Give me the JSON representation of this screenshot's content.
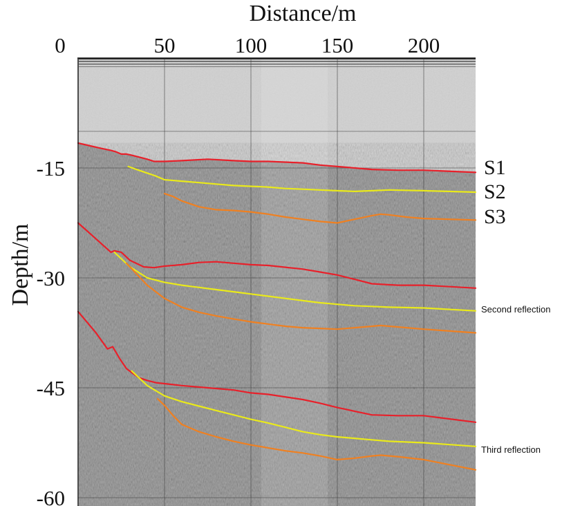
{
  "chart_data": {
    "type": "line",
    "title": "",
    "xlabel": "Distance/m",
    "ylabel": "Depth/m",
    "xlim": [
      0,
      230
    ],
    "ylim": [
      -60,
      0
    ],
    "x_ticks": [
      0,
      50,
      100,
      150,
      200
    ],
    "y_ticks": [
      -15,
      -30,
      -45,
      -60
    ],
    "grid": true,
    "series": [
      {
        "name": "S1",
        "color": "#e8202a",
        "group": "primary",
        "x": [
          0,
          13,
          19,
          22,
          25,
          28,
          30,
          35,
          40,
          44,
          50,
          60,
          75,
          90,
          100,
          110,
          130,
          140,
          150,
          160,
          170,
          185,
          200,
          230
        ],
        "y": [
          -11.6,
          -12.3,
          -12.6,
          -12.8,
          -13.1,
          -13.1,
          -13.2,
          -13.5,
          -13.8,
          -14.1,
          -14.1,
          -14.0,
          -13.8,
          -14.0,
          -14.1,
          -14.1,
          -14.3,
          -14.6,
          -14.8,
          -15.0,
          -15.2,
          -15.3,
          -15.3,
          -15.6
        ]
      },
      {
        "name": "S2",
        "color": "#eaea1a",
        "group": "primary",
        "x": [
          29,
          35,
          40,
          45,
          50,
          60,
          70,
          80,
          90,
          100,
          110,
          120,
          130,
          140,
          150,
          160,
          170,
          180,
          200,
          230
        ],
        "y": [
          -14.8,
          -15.3,
          -15.7,
          -16.1,
          -16.6,
          -16.8,
          -17.0,
          -17.2,
          -17.4,
          -17.5,
          -17.6,
          -17.8,
          -17.9,
          -18.0,
          -18.1,
          -18.2,
          -18.1,
          -18.0,
          -18.1,
          -18.3
        ]
      },
      {
        "name": "S3",
        "color": "#f08020",
        "group": "primary",
        "x": [
          50,
          55,
          60,
          70,
          80,
          90,
          100,
          110,
          120,
          130,
          140,
          150,
          160,
          170,
          175,
          180,
          190,
          200,
          230
        ],
        "y": [
          -18.5,
          -18.9,
          -19.5,
          -20.3,
          -20.7,
          -20.8,
          -21.0,
          -21.3,
          -21.7,
          -22.0,
          -22.3,
          -22.5,
          -22.0,
          -21.5,
          -21.3,
          -21.4,
          -21.7,
          -21.9,
          -22.1
        ]
      },
      {
        "name": "S1",
        "color": "#e8202a",
        "group": "Second reflection",
        "x": [
          0,
          10,
          19,
          21,
          25,
          30,
          38,
          44,
          50,
          60,
          70,
          80,
          90,
          100,
          110,
          130,
          140,
          150,
          160,
          170,
          185,
          200,
          230
        ],
        "y": [
          -22.5,
          -24.6,
          -26.5,
          -26.3,
          -26.5,
          -27.6,
          -28.5,
          -28.6,
          -28.4,
          -28.2,
          -27.9,
          -27.8,
          -28.0,
          -28.2,
          -28.3,
          -28.8,
          -29.2,
          -29.6,
          -30.2,
          -30.8,
          -31.0,
          -31.0,
          -31.4
        ]
      },
      {
        "name": "S2",
        "color": "#eaea1a",
        "group": "Second reflection",
        "x": [
          21,
          30,
          40,
          50,
          60,
          70,
          80,
          90,
          100,
          110,
          120,
          130,
          140,
          150,
          160,
          170,
          180,
          200,
          230
        ],
        "y": [
          -26.5,
          -28.5,
          -30.0,
          -30.6,
          -31.0,
          -31.3,
          -31.6,
          -31.9,
          -32.2,
          -32.5,
          -32.8,
          -33.1,
          -33.4,
          -33.6,
          -33.8,
          -33.9,
          -34.0,
          -34.1,
          -34.5
        ]
      },
      {
        "name": "S3",
        "color": "#f08020",
        "group": "Second reflection",
        "x": [
          28,
          40,
          50,
          60,
          70,
          80,
          90,
          100,
          110,
          120,
          130,
          140,
          150,
          160,
          170,
          175,
          185,
          200,
          230
        ],
        "y": [
          -28.0,
          -31.0,
          -32.8,
          -34.0,
          -34.7,
          -35.2,
          -35.6,
          -36.0,
          -36.3,
          -36.6,
          -36.8,
          -36.9,
          -37.0,
          -36.8,
          -36.6,
          -36.5,
          -36.7,
          -37.0,
          -37.5
        ]
      },
      {
        "name": "S1",
        "color": "#e8202a",
        "group": "Third reflection",
        "x": [
          0,
          10,
          17,
          20,
          24,
          28,
          35,
          40,
          45,
          60,
          75,
          90,
          100,
          110,
          130,
          140,
          150,
          160,
          170,
          185,
          200,
          230
        ],
        "y": [
          -34.6,
          -37.4,
          -39.7,
          -39.4,
          -41.0,
          -42.4,
          -43.6,
          -44.0,
          -44.3,
          -44.7,
          -45.0,
          -45.3,
          -45.7,
          -45.9,
          -46.6,
          -47.1,
          -47.7,
          -48.2,
          -48.7,
          -48.8,
          -48.8,
          -49.7
        ]
      },
      {
        "name": "S2",
        "color": "#eaea1a",
        "group": "Third reflection",
        "x": [
          31,
          40,
          50,
          60,
          70,
          80,
          90,
          100,
          110,
          120,
          130,
          140,
          150,
          160,
          170,
          180,
          200,
          230
        ],
        "y": [
          -42.7,
          -44.7,
          -46.1,
          -46.9,
          -47.5,
          -48.1,
          -48.7,
          -49.3,
          -49.8,
          -50.4,
          -51.0,
          -51.4,
          -51.7,
          -51.9,
          -52.1,
          -52.3,
          -52.5,
          -53.0
        ]
      },
      {
        "name": "S3",
        "color": "#f08020",
        "group": "Third reflection",
        "x": [
          46,
          50,
          55,
          60,
          70,
          80,
          90,
          100,
          110,
          120,
          130,
          140,
          150,
          160,
          170,
          175,
          185,
          200,
          230
        ],
        "y": [
          -46.5,
          -47.4,
          -48.8,
          -50.0,
          -51.0,
          -51.7,
          -52.3,
          -52.8,
          -53.2,
          -53.6,
          -53.9,
          -54.3,
          -54.8,
          -54.6,
          -54.3,
          -54.2,
          -54.4,
          -54.8,
          -56.2
        ]
      }
    ]
  },
  "annotations": {
    "surface_labels": [
      "S1",
      "S2",
      "S3"
    ],
    "second_reflection": "Second reflection",
    "third_reflection": "Third reflection"
  },
  "colors": {
    "s1": "#e8202a",
    "s2": "#eaea1a",
    "s3": "#f08020",
    "water": "#c4c4c4",
    "sediment": "#6e6e6e"
  }
}
